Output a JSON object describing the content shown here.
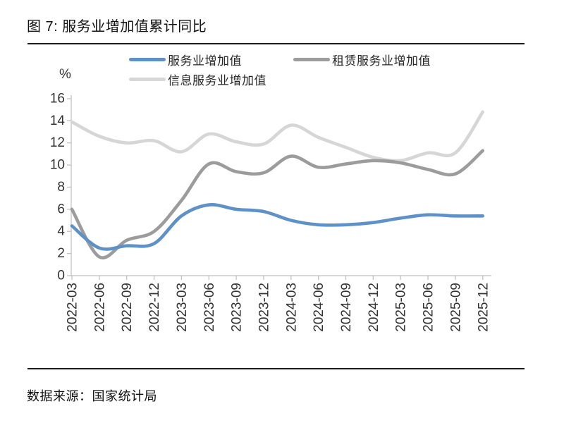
{
  "figure": {
    "title": "图 7: 服务业增加值累计同比",
    "source": "数据来源：国家统计局"
  },
  "chart_data": {
    "type": "line",
    "title": "服务业增加值累计同比",
    "x": [
      "2022-03",
      "2022-06",
      "2022-09",
      "2022-12",
      "2023-03",
      "2023-06",
      "2023-09",
      "2023-12",
      "2024-03",
      "2024-06",
      "2024-09",
      "2024-12",
      "2025-03",
      "2025-06",
      "2025-09",
      "2025-12"
    ],
    "series": [
      {
        "name": "服务业增加值",
        "color": "#5E91C8",
        "values": [
          4.5,
          2.5,
          2.7,
          2.9,
          5.4,
          6.4,
          6.0,
          5.8,
          5.0,
          4.6,
          4.6,
          4.8,
          5.2,
          5.5,
          5.4,
          5.4
        ]
      },
      {
        "name": "租赁服务业增加值",
        "color": "#9C9C9C",
        "values": [
          6.0,
          1.7,
          3.2,
          4.0,
          6.8,
          10.1,
          9.4,
          9.3,
          10.8,
          9.8,
          10.1,
          10.4,
          10.2,
          9.6,
          9.2,
          11.3
        ]
      },
      {
        "name": "信息服务业增加值",
        "color": "#D6D6D6",
        "values": [
          13.9,
          12.6,
          12.0,
          12.2,
          11.2,
          12.8,
          12.1,
          11.9,
          13.6,
          12.5,
          11.6,
          10.7,
          10.4,
          11.1,
          11.1,
          14.8
        ]
      }
    ],
    "ylabel": "%",
    "ylim": [
      0,
      16
    ],
    "ytick_step": 2,
    "grid": false,
    "legend_position": "top",
    "x_tick_rotation": -90
  }
}
